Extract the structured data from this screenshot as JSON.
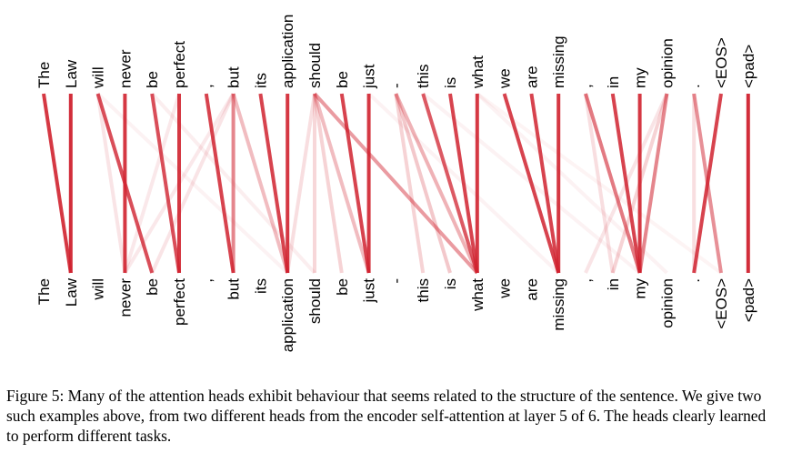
{
  "figure": {
    "tokens": [
      "The",
      "Law",
      "will",
      "never",
      "be",
      "perfect",
      ",",
      "but",
      "its",
      "application",
      "should",
      "be",
      "just",
      "-",
      "this",
      "is",
      "what",
      "we",
      "are",
      "missing",
      ",",
      "in",
      "my",
      "opinion",
      ".",
      "<EOS>",
      "<pad>"
    ],
    "line_color": "#d0222f",
    "attention_edges": [
      {
        "from": 0,
        "to": 1,
        "weight": 0.9
      },
      {
        "from": 1,
        "to": 1,
        "weight": 0.95
      },
      {
        "from": 2,
        "to": 4,
        "weight": 0.8
      },
      {
        "from": 2,
        "to": 3,
        "weight": 0.12
      },
      {
        "from": 3,
        "to": 3,
        "weight": 0.9
      },
      {
        "from": 4,
        "to": 5,
        "weight": 0.8
      },
      {
        "from": 5,
        "to": 5,
        "weight": 0.9
      },
      {
        "from": 5,
        "to": 3,
        "weight": 0.1
      },
      {
        "from": 6,
        "to": 7,
        "weight": 0.85
      },
      {
        "from": 7,
        "to": 7,
        "weight": 0.55
      },
      {
        "from": 7,
        "to": 9,
        "weight": 0.3
      },
      {
        "from": 7,
        "to": 4,
        "weight": 0.12
      },
      {
        "from": 7,
        "to": 3,
        "weight": 0.1
      },
      {
        "from": 8,
        "to": 9,
        "weight": 0.85
      },
      {
        "from": 9,
        "to": 9,
        "weight": 0.9
      },
      {
        "from": 10,
        "to": 10,
        "weight": 0.18
      },
      {
        "from": 10,
        "to": 16,
        "weight": 0.45
      },
      {
        "from": 10,
        "to": 12,
        "weight": 0.3
      },
      {
        "from": 10,
        "to": 11,
        "weight": 0.2
      },
      {
        "from": 10,
        "to": 9,
        "weight": 0.15
      },
      {
        "from": 11,
        "to": 12,
        "weight": 0.85
      },
      {
        "from": 12,
        "to": 12,
        "weight": 0.9
      },
      {
        "from": 13,
        "to": 16,
        "weight": 0.35
      },
      {
        "from": 13,
        "to": 15,
        "weight": 0.25
      },
      {
        "from": 13,
        "to": 14,
        "weight": 0.2
      },
      {
        "from": 14,
        "to": 16,
        "weight": 0.75
      },
      {
        "from": 15,
        "to": 16,
        "weight": 0.85
      },
      {
        "from": 16,
        "to": 16,
        "weight": 0.9
      },
      {
        "from": 17,
        "to": 19,
        "weight": 0.85
      },
      {
        "from": 18,
        "to": 19,
        "weight": 0.85
      },
      {
        "from": 19,
        "to": 19,
        "weight": 0.9
      },
      {
        "from": 20,
        "to": 22,
        "weight": 0.6
      },
      {
        "from": 20,
        "to": 21,
        "weight": 0.15
      },
      {
        "from": 21,
        "to": 22,
        "weight": 0.85
      },
      {
        "from": 22,
        "to": 22,
        "weight": 0.9
      },
      {
        "from": 23,
        "to": 22,
        "weight": 0.55
      },
      {
        "from": 23,
        "to": 21,
        "weight": 0.2
      },
      {
        "from": 23,
        "to": 20,
        "weight": 0.12
      },
      {
        "from": 24,
        "to": 24,
        "weight": 0.15
      },
      {
        "from": 24,
        "to": 25,
        "weight": 0.5
      },
      {
        "from": 25,
        "to": 24,
        "weight": 0.85
      },
      {
        "from": 26,
        "to": 26,
        "weight": 0.95
      },
      {
        "from": 4,
        "to": 10,
        "weight": 0.08
      },
      {
        "from": 16,
        "to": 23,
        "weight": 0.06
      },
      {
        "from": 16,
        "to": 25,
        "weight": 0.05
      },
      {
        "from": 2,
        "to": 9,
        "weight": 0.06
      },
      {
        "from": 14,
        "to": 22,
        "weight": 0.06
      },
      {
        "from": 12,
        "to": 19,
        "weight": 0.06
      }
    ]
  },
  "caption": {
    "text": "Figure 5: Many of the attention heads exhibit behaviour that seems related to the structure of the sentence. We give two such examples above, from two different heads from the encoder self-attention at layer 5 of 6. The heads clearly learned to perform different tasks."
  }
}
